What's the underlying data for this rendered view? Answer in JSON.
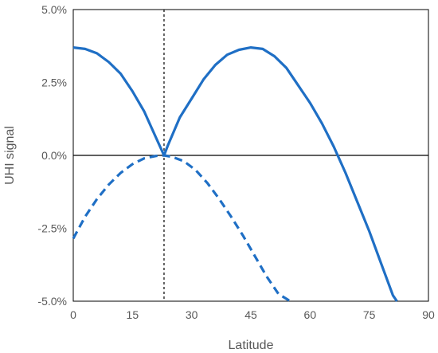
{
  "chart_data": {
    "type": "line",
    "xlabel": "Latitude",
    "ylabel": "UHI signal",
    "xlim": [
      0,
      90
    ],
    "ylim": [
      -5.0,
      5.0
    ],
    "x_ticks": [
      "0",
      "15",
      "30",
      "45",
      "60",
      "75",
      "90"
    ],
    "y_ticks": [
      "-5.0%",
      "-2.5%",
      "0.0%",
      "2.5%",
      "5.0%"
    ],
    "reference_line_x": 23,
    "grid": false,
    "legend": "none",
    "series_color": "#1f6fc5",
    "series": [
      {
        "style": "solid",
        "x": [
          0,
          3,
          6,
          9,
          12,
          15,
          18,
          20,
          21.5,
          23,
          24,
          27,
          30,
          33,
          36,
          39,
          42,
          45,
          48,
          51,
          54,
          57,
          60,
          63,
          66,
          69,
          72,
          75,
          78,
          81,
          82
        ],
        "y": [
          3.7,
          3.65,
          3.5,
          3.2,
          2.8,
          2.2,
          1.5,
          0.9,
          0.45,
          0.0,
          0.35,
          1.3,
          1.95,
          2.6,
          3.1,
          3.45,
          3.62,
          3.7,
          3.65,
          3.4,
          3.0,
          2.4,
          1.8,
          1.1,
          0.3,
          -0.6,
          -1.6,
          -2.6,
          -3.7,
          -4.8,
          -5.0
        ]
      },
      {
        "style": "dashed",
        "x": [
          0,
          3,
          6,
          9,
          12,
          15,
          18,
          21,
          23,
          25,
          28,
          31,
          34,
          37,
          40,
          43,
          46,
          49,
          52,
          55
        ],
        "y": [
          -2.85,
          -2.1,
          -1.5,
          -1.0,
          -0.6,
          -0.3,
          -0.1,
          -0.02,
          0.0,
          -0.05,
          -0.2,
          -0.5,
          -0.95,
          -1.5,
          -2.1,
          -2.75,
          -3.45,
          -4.15,
          -4.75,
          -5.0
        ]
      }
    ]
  }
}
